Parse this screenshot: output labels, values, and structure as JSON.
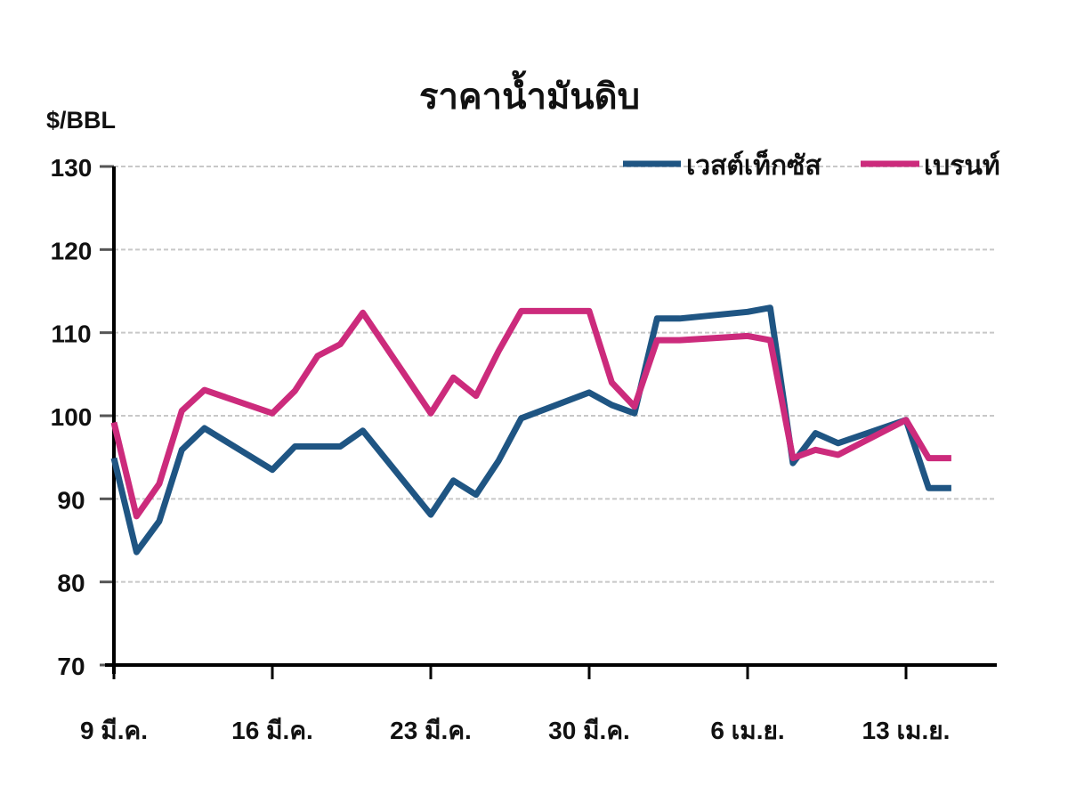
{
  "chart_data": {
    "type": "line",
    "title": "ราคาน้ำมันดิบ",
    "ylabel": "$/BBL",
    "xlabel": "",
    "ylim": [
      70,
      130
    ],
    "yticks": [
      70,
      80,
      90,
      100,
      110,
      120,
      130
    ],
    "grid": true,
    "legend_position": "top-right",
    "x_tick_labels": [
      "9 มี.ค.",
      "16 มี.ค.",
      "23 มี.ค.",
      "30 มี.ค.",
      "6 เม.ย.",
      "13 เม.ย."
    ],
    "x": [
      "9 มี.ค.",
      "10 มี.ค.",
      "11 มี.ค.",
      "12 มี.ค.",
      "13 มี.ค.",
      "16 มี.ค.",
      "17 มี.ค.",
      "18 มี.ค.",
      "19 มี.ค.",
      "20 มี.ค.",
      "23 มี.ค.",
      "24 มี.ค.",
      "25 มี.ค.",
      "26 มี.ค.",
      "27 มี.ค.",
      "30 มี.ค.",
      "31 มี.ค.",
      "1 เม.ย.",
      "2 เม.ย.",
      "3 เม.ย.",
      "6 เม.ย.",
      "7 เม.ย.",
      "8 เม.ย.",
      "9 เม.ย.",
      "10 เม.ย.",
      "13 เม.ย.",
      "14 เม.ย.",
      "15 เม.ย."
    ],
    "day_offsets": [
      0,
      1,
      2,
      3,
      4,
      7,
      8,
      9,
      10,
      11,
      14,
      15,
      16,
      17,
      18,
      21,
      22,
      23,
      24,
      25,
      28,
      29,
      30,
      31,
      32,
      35,
      36,
      37
    ],
    "series": [
      {
        "name": "เวสต์เท็กซัส",
        "color": "#1f5583",
        "values": [
          94.9,
          83.6,
          87.3,
          95.9,
          98.5,
          93.5,
          96.3,
          96.3,
          96.3,
          98.2,
          88.1,
          92.2,
          90.5,
          94.6,
          99.7,
          102.8,
          101.3,
          100.3,
          111.7,
          111.7,
          112.5,
          113.0,
          94.3,
          97.9,
          96.7,
          99.5,
          91.3,
          91.3
        ]
      },
      {
        "name": "เบรนท์",
        "color": "#cc2b7c",
        "values": [
          99.2,
          87.9,
          91.8,
          100.6,
          103.1,
          100.3,
          103.0,
          107.2,
          108.6,
          112.4,
          100.3,
          104.6,
          102.4,
          107.8,
          112.6,
          112.6,
          104.0,
          101.1,
          109.1,
          109.1,
          109.6,
          109.1,
          94.9,
          95.9,
          95.3,
          99.5,
          94.9,
          94.9
        ]
      }
    ]
  },
  "labels": {
    "title": "ราคาน้ำมันดิบ",
    "unit": "$/BBL",
    "legend_wti": "เวสต์เท็กซัส",
    "legend_brent": "เบรนท์"
  }
}
